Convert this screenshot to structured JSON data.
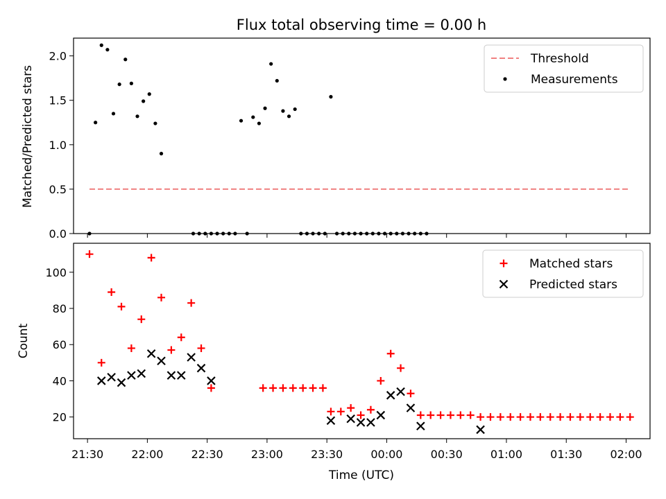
{
  "chart_data": [
    {
      "type": "scatter",
      "title": "Flux total observing time = 0.00 h",
      "ylabel": "Matched/Predicted stars",
      "xlim": [
        "21:23",
        "02:12"
      ],
      "ylim": [
        0,
        2.2
      ],
      "yticks": [
        "0.0",
        "0.5",
        "1.0",
        "1.5",
        "2.0"
      ],
      "legend": "top-right",
      "threshold": {
        "name": "Threshold",
        "value": 0.5,
        "x_range": [
          "21:31",
          "02:02"
        ],
        "color": "#f08080",
        "style": "dashed"
      },
      "series": [
        {
          "name": "Measurements",
          "color": "#000000",
          "marker": "dot",
          "points": [
            [
              "21:31",
              0.0
            ],
            [
              "21:34",
              1.25
            ],
            [
              "21:37",
              2.12
            ],
            [
              "21:40",
              2.07
            ],
            [
              "21:43",
              1.35
            ],
            [
              "21:46",
              1.68
            ],
            [
              "21:49",
              1.96
            ],
            [
              "21:52",
              1.69
            ],
            [
              "21:55",
              1.32
            ],
            [
              "21:58",
              1.49
            ],
            [
              "22:01",
              1.57
            ],
            [
              "22:04",
              1.24
            ],
            [
              "22:07",
              0.9
            ],
            [
              "22:23",
              0.0
            ],
            [
              "22:26",
              0.0
            ],
            [
              "22:29",
              0.0
            ],
            [
              "22:32",
              0.0
            ],
            [
              "22:35",
              0.0
            ],
            [
              "22:38",
              0.0
            ],
            [
              "22:41",
              0.0
            ],
            [
              "22:44",
              0.0
            ],
            [
              "22:47",
              1.27
            ],
            [
              "22:50",
              0.0
            ],
            [
              "22:53",
              1.31
            ],
            [
              "22:56",
              1.24
            ],
            [
              "22:59",
              1.41
            ],
            [
              "23:02",
              1.91
            ],
            [
              "23:05",
              1.72
            ],
            [
              "23:08",
              1.38
            ],
            [
              "23:11",
              1.32
            ],
            [
              "23:14",
              1.4
            ],
            [
              "23:17",
              0.0
            ],
            [
              "23:20",
              0.0
            ],
            [
              "23:23",
              0.0
            ],
            [
              "23:26",
              0.0
            ],
            [
              "23:29",
              0.0
            ],
            [
              "23:32",
              1.54
            ],
            [
              "23:35",
              0.0
            ],
            [
              "23:38",
              0.0
            ],
            [
              "23:41",
              0.0
            ],
            [
              "23:44",
              0.0
            ],
            [
              "23:47",
              0.0
            ],
            [
              "23:50",
              0.0
            ],
            [
              "23:53",
              0.0
            ],
            [
              "23:56",
              0.0
            ],
            [
              "23:59",
              0.0
            ],
            [
              "00:02",
              0.0
            ],
            [
              "00:05",
              0.0
            ],
            [
              "00:08",
              0.0
            ],
            [
              "00:11",
              0.0
            ],
            [
              "00:14",
              0.0
            ],
            [
              "00:17",
              0.0
            ],
            [
              "00:20",
              0.0
            ]
          ]
        }
      ]
    },
    {
      "type": "scatter",
      "xlabel": "Time (UTC)",
      "ylabel": "Count",
      "xlim": [
        "21:23",
        "02:12"
      ],
      "ylim": [
        8,
        116
      ],
      "yticks": [
        "20",
        "40",
        "60",
        "80",
        "100"
      ],
      "xticks": [
        "21:30",
        "22:00",
        "22:30",
        "23:00",
        "23:30",
        "00:00",
        "00:30",
        "01:00",
        "01:30",
        "02:00"
      ],
      "legend": "top-right",
      "series": [
        {
          "name": "Matched stars",
          "color": "#ff0000",
          "marker": "plus",
          "points": [
            [
              "21:31",
              110
            ],
            [
              "21:37",
              50
            ],
            [
              "21:42",
              89
            ],
            [
              "21:47",
              81
            ],
            [
              "21:52",
              58
            ],
            [
              "21:57",
              74
            ],
            [
              "22:02",
              108
            ],
            [
              "22:07",
              86
            ],
            [
              "22:12",
              57
            ],
            [
              "22:17",
              64
            ],
            [
              "22:22",
              83
            ],
            [
              "22:27",
              58
            ],
            [
              "22:32",
              36
            ],
            [
              "22:58",
              36
            ],
            [
              "23:03",
              36
            ],
            [
              "23:08",
              36
            ],
            [
              "23:13",
              36
            ],
            [
              "23:18",
              36
            ],
            [
              "23:23",
              36
            ],
            [
              "23:28",
              36
            ],
            [
              "23:32",
              23
            ],
            [
              "23:37",
              23
            ],
            [
              "23:42",
              25
            ],
            [
              "23:47",
              21
            ],
            [
              "23:52",
              24
            ],
            [
              "23:57",
              40
            ],
            [
              "00:02",
              55
            ],
            [
              "00:07",
              47
            ],
            [
              "00:12",
              33
            ],
            [
              "00:17",
              21
            ],
            [
              "00:22",
              21
            ],
            [
              "00:27",
              21
            ],
            [
              "00:32",
              21
            ],
            [
              "00:37",
              21
            ],
            [
              "00:42",
              21
            ],
            [
              "00:47",
              20
            ],
            [
              "00:52",
              20
            ],
            [
              "00:57",
              20
            ],
            [
              "01:02",
              20
            ],
            [
              "01:07",
              20
            ],
            [
              "01:12",
              20
            ],
            [
              "01:17",
              20
            ],
            [
              "01:22",
              20
            ],
            [
              "01:27",
              20
            ],
            [
              "01:32",
              20
            ],
            [
              "01:37",
              20
            ],
            [
              "01:42",
              20
            ],
            [
              "01:47",
              20
            ],
            [
              "01:52",
              20
            ],
            [
              "01:57",
              20
            ],
            [
              "02:02",
              20
            ]
          ]
        },
        {
          "name": "Predicted stars",
          "color": "#000000",
          "marker": "x",
          "points": [
            [
              "21:37",
              40
            ],
            [
              "21:42",
              42
            ],
            [
              "21:47",
              39
            ],
            [
              "21:52",
              43
            ],
            [
              "21:57",
              44
            ],
            [
              "22:02",
              55
            ],
            [
              "22:07",
              51
            ],
            [
              "22:12",
              43
            ],
            [
              "22:17",
              43
            ],
            [
              "22:22",
              53
            ],
            [
              "22:27",
              47
            ],
            [
              "22:32",
              40
            ],
            [
              "23:32",
              18
            ],
            [
              "23:42",
              19
            ],
            [
              "23:47",
              17
            ],
            [
              "23:52",
              17
            ],
            [
              "23:57",
              21
            ],
            [
              "00:02",
              32
            ],
            [
              "00:07",
              34
            ],
            [
              "00:12",
              25
            ],
            [
              "00:17",
              15
            ],
            [
              "00:47",
              13
            ]
          ]
        }
      ]
    }
  ]
}
